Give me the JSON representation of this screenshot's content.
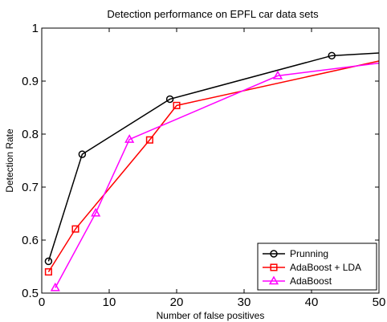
{
  "chart_data": {
    "type": "line",
    "title": "Detection performance on EPFL car data sets",
    "xlabel": "Number of false positives",
    "ylabel": "Detection Rate",
    "xlim": [
      0,
      50
    ],
    "ylim": [
      0.5,
      1
    ],
    "xticks": [
      0,
      10,
      20,
      30,
      40,
      50
    ],
    "xtick_labels": [
      "0",
      "10",
      "20",
      "30",
      "40",
      "50"
    ],
    "yticks": [
      0.5,
      0.6,
      0.7,
      0.8,
      0.9,
      1.0
    ],
    "ytick_labels": [
      "0.5",
      "0.6",
      "0.7",
      "0.8",
      "0.9",
      "1"
    ],
    "grid": false,
    "legend_position": "bottom-right",
    "series": [
      {
        "name": "Prunning",
        "color": "#000000",
        "marker": "circle",
        "x": [
          1,
          6,
          19,
          43,
          50
        ],
        "y": [
          0.56,
          0.762,
          0.866,
          0.948,
          0.953
        ],
        "marker_indices": [
          0,
          1,
          2,
          3
        ]
      },
      {
        "name": "AdaBoost + LDA",
        "color": "#ff0000",
        "marker": "square",
        "x": [
          1,
          5,
          16,
          20,
          50
        ],
        "y": [
          0.54,
          0.621,
          0.789,
          0.854,
          0.938
        ],
        "marker_indices": [
          0,
          1,
          2,
          3
        ]
      },
      {
        "name": "AdaBoost",
        "color": "#ff00ff",
        "marker": "triangle",
        "x": [
          2,
          8,
          13,
          35,
          50
        ],
        "y": [
          0.51,
          0.651,
          0.79,
          0.91,
          0.934
        ],
        "marker_indices": [
          0,
          1,
          2,
          3
        ]
      }
    ]
  }
}
